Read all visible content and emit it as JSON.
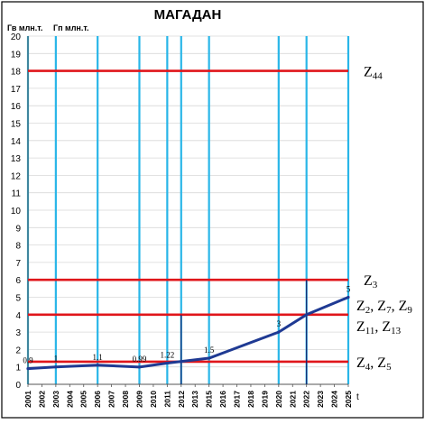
{
  "chart_data": {
    "type": "line",
    "title": "МАГАДАН",
    "ylabel_left": "Гв млн.т.",
    "ylabel_right": "Гп млн.т.",
    "xlabel": "t",
    "ylim": [
      0,
      20
    ],
    "y_ticks": [
      0,
      1,
      2,
      3,
      4,
      5,
      6,
      7,
      8,
      9,
      10,
      11,
      12,
      13,
      14,
      15,
      16,
      17,
      18,
      19,
      20
    ],
    "x_ticks": [
      "2001",
      "2002",
      "2003",
      "2004",
      "2005",
      "2006",
      "2007",
      "2008",
      "2009",
      "2010",
      "2011",
      "2012",
      "2013",
      "2015",
      "2016",
      "2017",
      "2018",
      "2019",
      "2020",
      "2021",
      "2022",
      "2023",
      "2024",
      "2025"
    ],
    "grid_vertical_at": [
      "2001",
      "2003",
      "2006",
      "2009",
      "2011",
      "2012",
      "2015",
      "2020",
      "2022",
      "2025"
    ],
    "series": [
      {
        "color": "#1f3a93",
        "x": [
          "2001",
          "2003",
          "2006",
          "2009",
          "2011",
          "2015",
          "2020",
          "2022",
          "2025"
        ],
        "values": [
          0.9,
          1,
          1.1,
          0.99,
          1.22,
          1.5,
          3,
          4,
          5
        ],
        "labels": [
          "0.9",
          "1",
          "1.1",
          "0.99",
          "1.22",
          "1.5",
          "3",
          "",
          "5"
        ]
      }
    ],
    "reference_lines": [
      {
        "y": 18,
        "label_main": "Z",
        "label_sub": "44",
        "lines": []
      },
      {
        "y": 6,
        "label_main": "Z",
        "label_sub": "3",
        "lines": []
      },
      {
        "y": 4,
        "label_main": "",
        "label_sub": "",
        "lines": [
          [
            [
              "Z",
              "2"
            ],
            [
              "Z",
              "7"
            ],
            [
              "Z",
              "9"
            ]
          ],
          [
            [
              "Z",
              "11"
            ],
            [
              "Z",
              "13"
            ]
          ]
        ]
      },
      {
        "y": 1.3,
        "label_main": "",
        "label_sub": "",
        "lines": [
          [
            [
              "Z",
              "4"
            ],
            [
              "Z",
              "5"
            ]
          ]
        ]
      }
    ],
    "marker_lines": [
      {
        "x": "2012",
        "y_top": 4
      },
      {
        "x": "2022",
        "y_top": 6
      }
    ],
    "colors": {
      "grid": "#29b6e8",
      "reference": "#e0161b",
      "series": "#1f3a93",
      "marker": "#14206b"
    }
  }
}
